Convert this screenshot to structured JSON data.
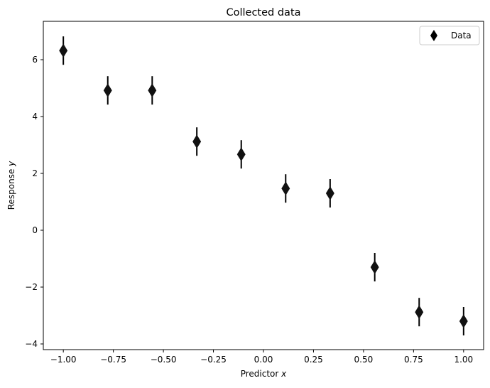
{
  "chart_data": {
    "type": "scatter",
    "title": "Collected data",
    "xlabel": "Predictor",
    "xlabel_var": "x",
    "ylabel": "Response",
    "ylabel_var": "y",
    "xlim": [
      -1.1,
      1.1
    ],
    "ylim": [
      -4.2,
      7.35
    ],
    "xticks": [
      -1.0,
      -0.75,
      -0.5,
      -0.25,
      0.0,
      0.25,
      0.5,
      0.75,
      1.0
    ],
    "xtick_labels": [
      "−1.00",
      "−0.75",
      "−0.50",
      "−0.25",
      "0.00",
      "0.25",
      "0.50",
      "0.75",
      "1.00"
    ],
    "yticks": [
      -4,
      -2,
      0,
      2,
      4,
      6
    ],
    "ytick_labels": [
      "−4",
      "−2",
      "0",
      "2",
      "4",
      "6"
    ],
    "grid": false,
    "legend": {
      "position": "top-right",
      "entries": [
        "Data"
      ]
    },
    "marker": "thin-diamond",
    "color": "#000000",
    "series": [
      {
        "name": "Data",
        "x": [
          -1.0,
          -0.778,
          -0.556,
          -0.333,
          -0.111,
          0.111,
          0.333,
          0.556,
          0.778,
          1.0
        ],
        "y": [
          6.32,
          4.92,
          4.92,
          3.12,
          2.67,
          1.47,
          1.3,
          -1.3,
          -2.88,
          -3.2
        ],
        "yerr": [
          0.5,
          0.5,
          0.5,
          0.5,
          0.5,
          0.5,
          0.5,
          0.5,
          0.5,
          0.5
        ]
      }
    ]
  }
}
